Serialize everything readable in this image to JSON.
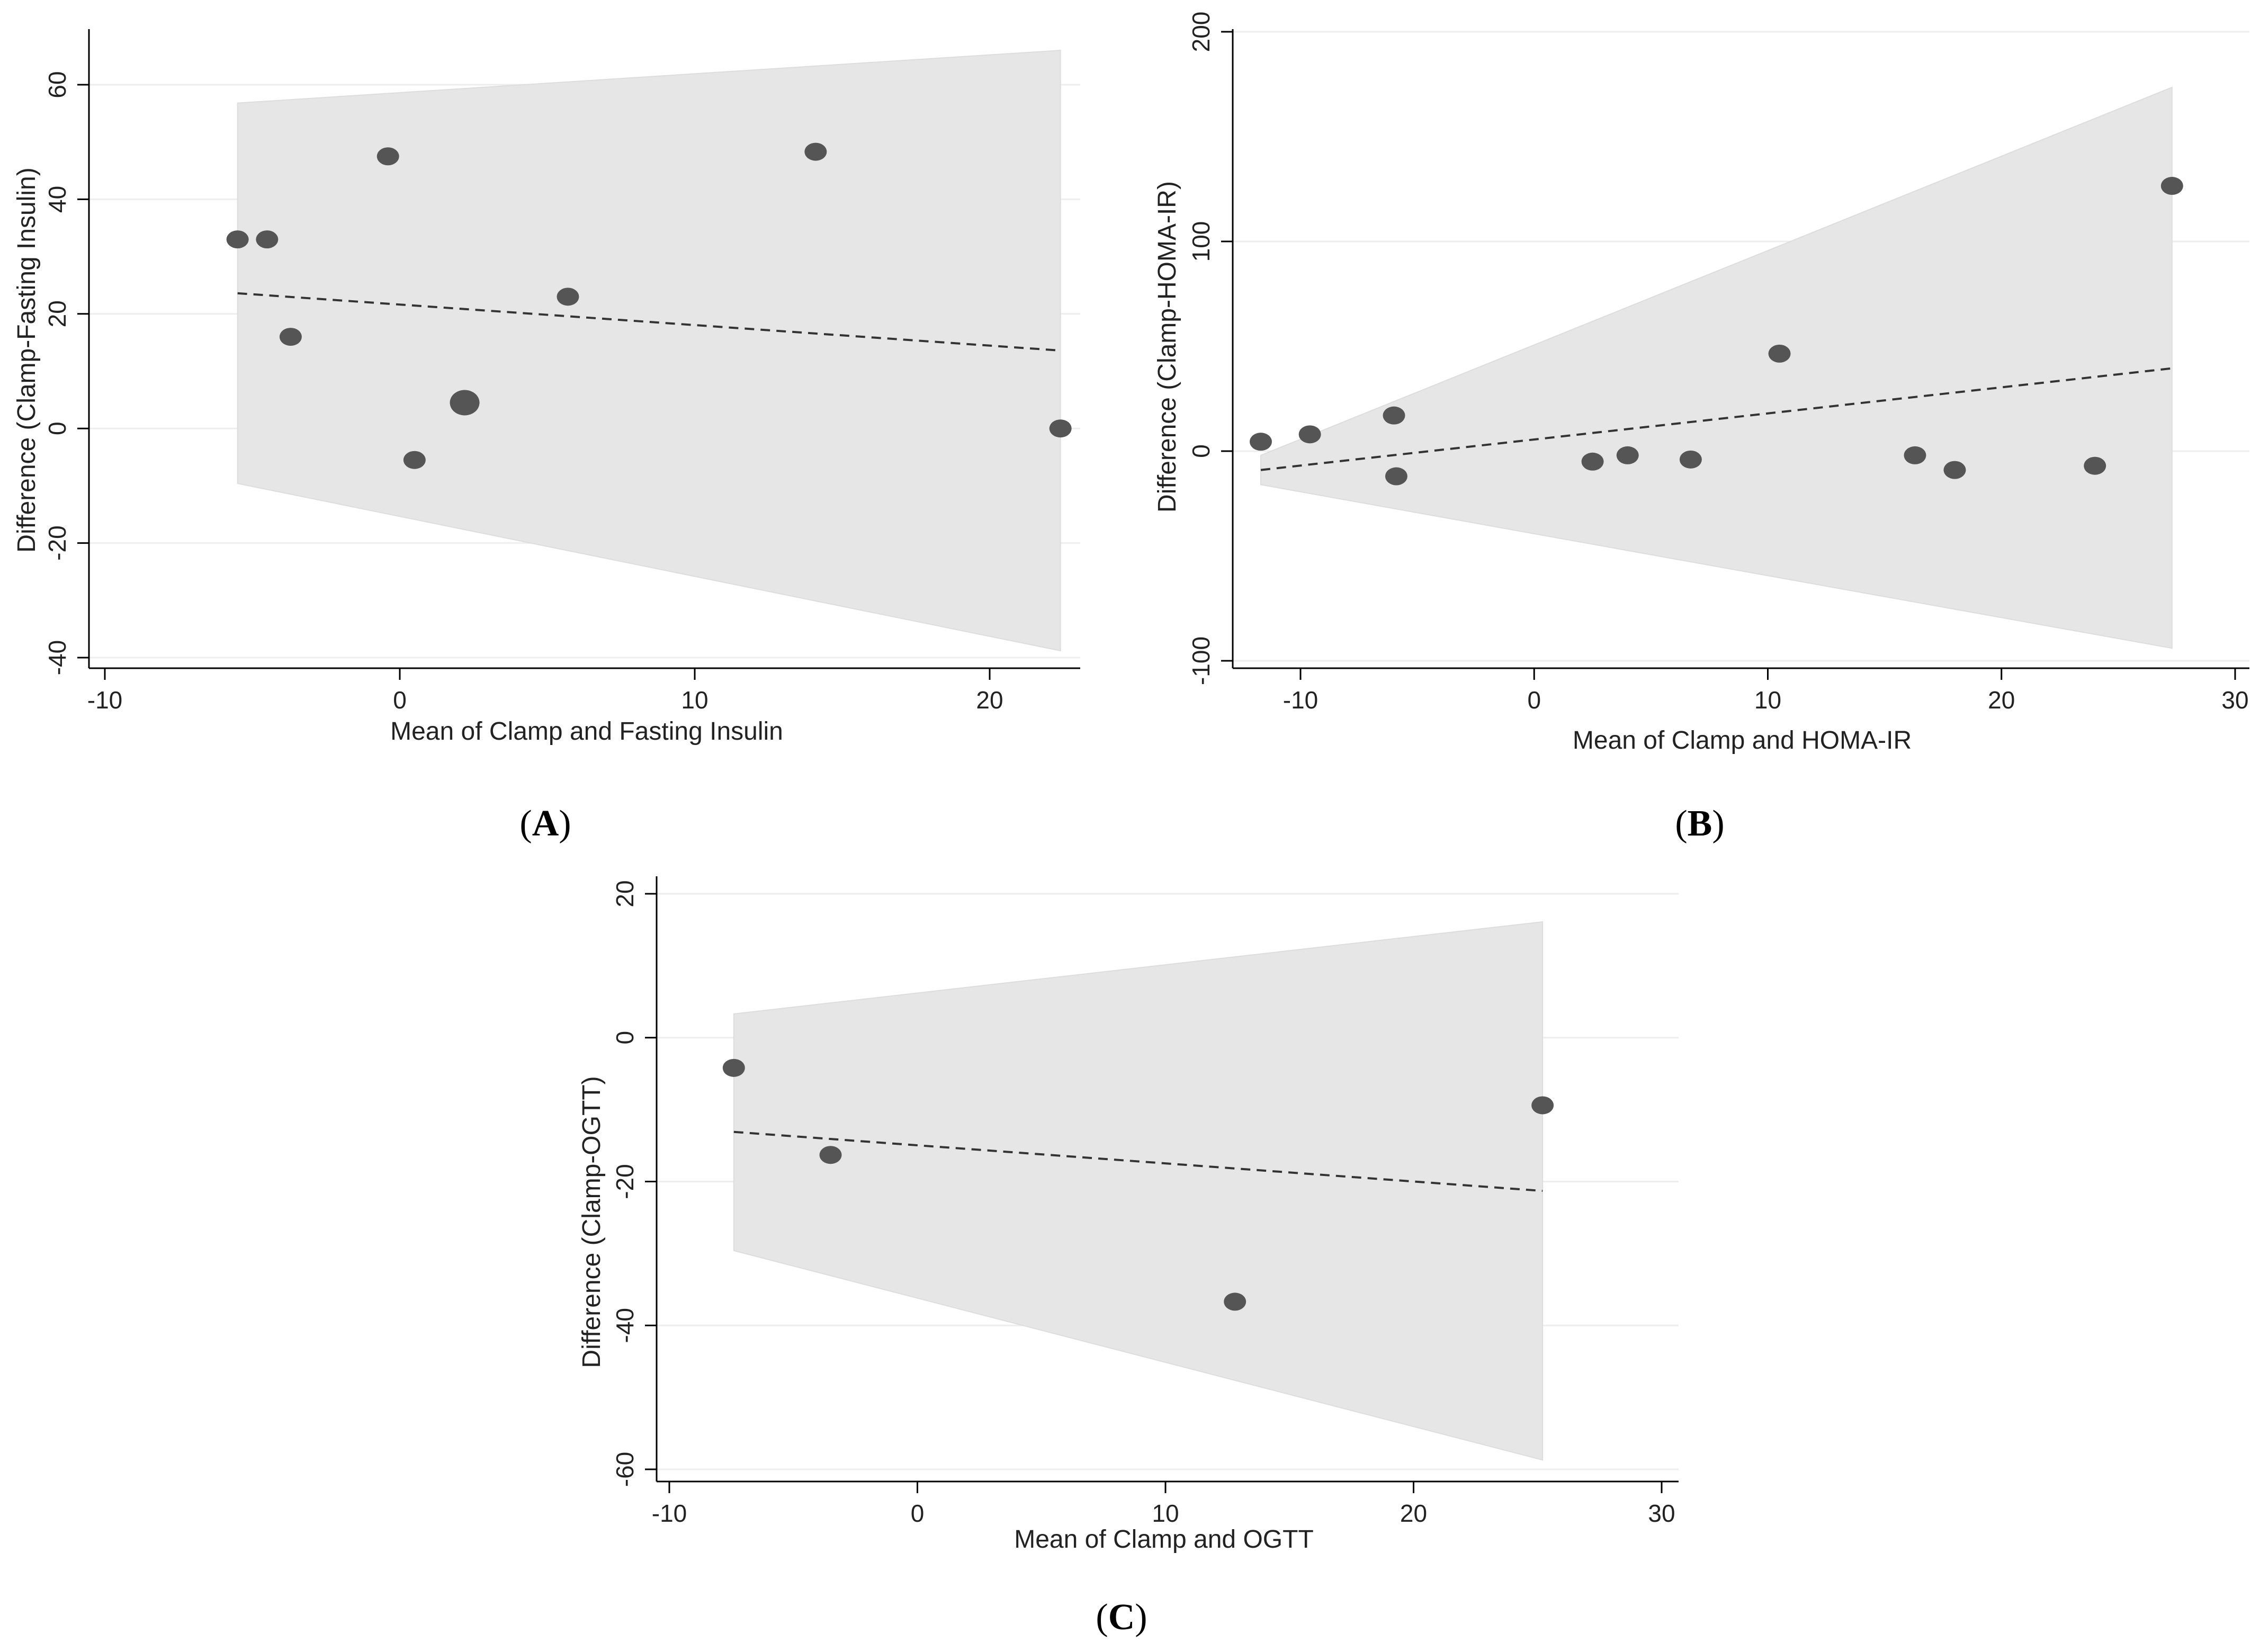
{
  "colors": {
    "band_fill": "#e6e6e6",
    "point_fill": "#555555",
    "grid": "#eeeeee",
    "axis": "#000000",
    "trend": "#333333",
    "background": "#ffffff"
  },
  "chart_data": [
    {
      "id": "A",
      "type": "scatter",
      "caption": {
        "open": "(",
        "letter": "A",
        "close": ")"
      },
      "title": "",
      "xlabel": "Mean of Clamp and Fasting Insulin",
      "ylabel": "Difference (Clamp-Fasting Insulin)",
      "xlim": [
        -10.5,
        23
      ],
      "ylim": [
        -42,
        70
      ],
      "xticks": [
        -10,
        0,
        10,
        20
      ],
      "yticks": [
        -40,
        -20,
        0,
        20,
        40,
        60
      ],
      "xtick_labels": [
        "-10",
        "0",
        "10",
        "20"
      ],
      "ytick_labels": [
        "-40",
        "-20",
        "0",
        "20",
        "40",
        "60"
      ],
      "points": [
        {
          "x": -5.5,
          "y": 33
        },
        {
          "x": -4.5,
          "y": 33
        },
        {
          "x": -3.7,
          "y": 16
        },
        {
          "x": -0.4,
          "y": 47.5
        },
        {
          "x": 0.5,
          "y": -5.5
        },
        {
          "x": 2.2,
          "y": 4.5,
          "large": true
        },
        {
          "x": 5.7,
          "y": 23
        },
        {
          "x": 14.1,
          "y": 48.3
        },
        {
          "x": 22.4,
          "y": 0
        }
      ],
      "trend": {
        "x": [
          -5.5,
          22.4
        ],
        "y": [
          23.6,
          13.6
        ]
      },
      "band": {
        "x": [
          -5.5,
          22.4
        ],
        "upper": [
          56.8,
          66
        ],
        "lower": [
          -9.6,
          -38.8
        ]
      }
    },
    {
      "id": "B",
      "type": "scatter",
      "caption": {
        "open": "(",
        "letter": "B",
        "close": ")"
      },
      "title": "",
      "xlabel": "Mean of Clamp and HOMA-IR",
      "ylabel": "Difference (Clamp-HOMA-IR)",
      "xlim": [
        -12.5,
        31
      ],
      "ylim": [
        -105,
        205
      ],
      "xticks": [
        -10,
        0,
        10,
        20,
        30
      ],
      "yticks": [
        -100,
        0,
        100,
        200
      ],
      "xtick_labels": [
        "-10",
        "0",
        "10",
        "20",
        "30"
      ],
      "ytick_labels": [
        "-100",
        "0",
        "100",
        "200"
      ],
      "points": [
        {
          "x": -11.7,
          "y": 4.5
        },
        {
          "x": -9.6,
          "y": 8
        },
        {
          "x": -6,
          "y": 17
        },
        {
          "x": -5.9,
          "y": -12
        },
        {
          "x": 2.5,
          "y": -5
        },
        {
          "x": 4,
          "y": -2
        },
        {
          "x": 6.7,
          "y": -4
        },
        {
          "x": 10.5,
          "y": 46.5
        },
        {
          "x": 16.3,
          "y": -2
        },
        {
          "x": 18,
          "y": -9
        },
        {
          "x": 24,
          "y": -7
        },
        {
          "x": 27.3,
          "y": 126.5
        }
      ],
      "trend": {
        "x": [
          -11.7,
          27.3
        ],
        "y": [
          -9,
          39.5
        ]
      },
      "band": {
        "x": [
          -11.7,
          27.3
        ],
        "upper": [
          -2,
          173.5
        ],
        "lower": [
          -16,
          -94
        ]
      }
    },
    {
      "id": "C",
      "type": "scatter",
      "caption": {
        "open": "(",
        "letter": "C",
        "close": ")"
      },
      "title": "",
      "xlabel": "Mean of Clamp and OGTT",
      "ylabel": "Difference (Clamp-OGTT)",
      "xlim": [
        -10.5,
        31
      ],
      "ylim": [
        -62,
        22
      ],
      "xticks": [
        -10,
        0,
        10,
        20,
        30
      ],
      "yticks": [
        -60,
        -40,
        -20,
        0,
        20
      ],
      "xtick_labels": [
        "-10",
        "0",
        "10",
        "20",
        "30"
      ],
      "ytick_labels": [
        "-60",
        "-40",
        "-20",
        "0",
        "20"
      ],
      "points": [
        {
          "x": -7.4,
          "y": -4.2
        },
        {
          "x": -3.5,
          "y": -16.3
        },
        {
          "x": 12.8,
          "y": -36.7
        },
        {
          "x": 25.2,
          "y": -9.4
        }
      ],
      "trend": {
        "x": [
          -7.4,
          25.2
        ],
        "y": [
          -13.1,
          -21.3
        ]
      },
      "band": {
        "x": [
          -7.4,
          25.2
        ],
        "upper": [
          3.3,
          16.1
        ],
        "lower": [
          -29.6,
          -58.7
        ]
      }
    }
  ]
}
